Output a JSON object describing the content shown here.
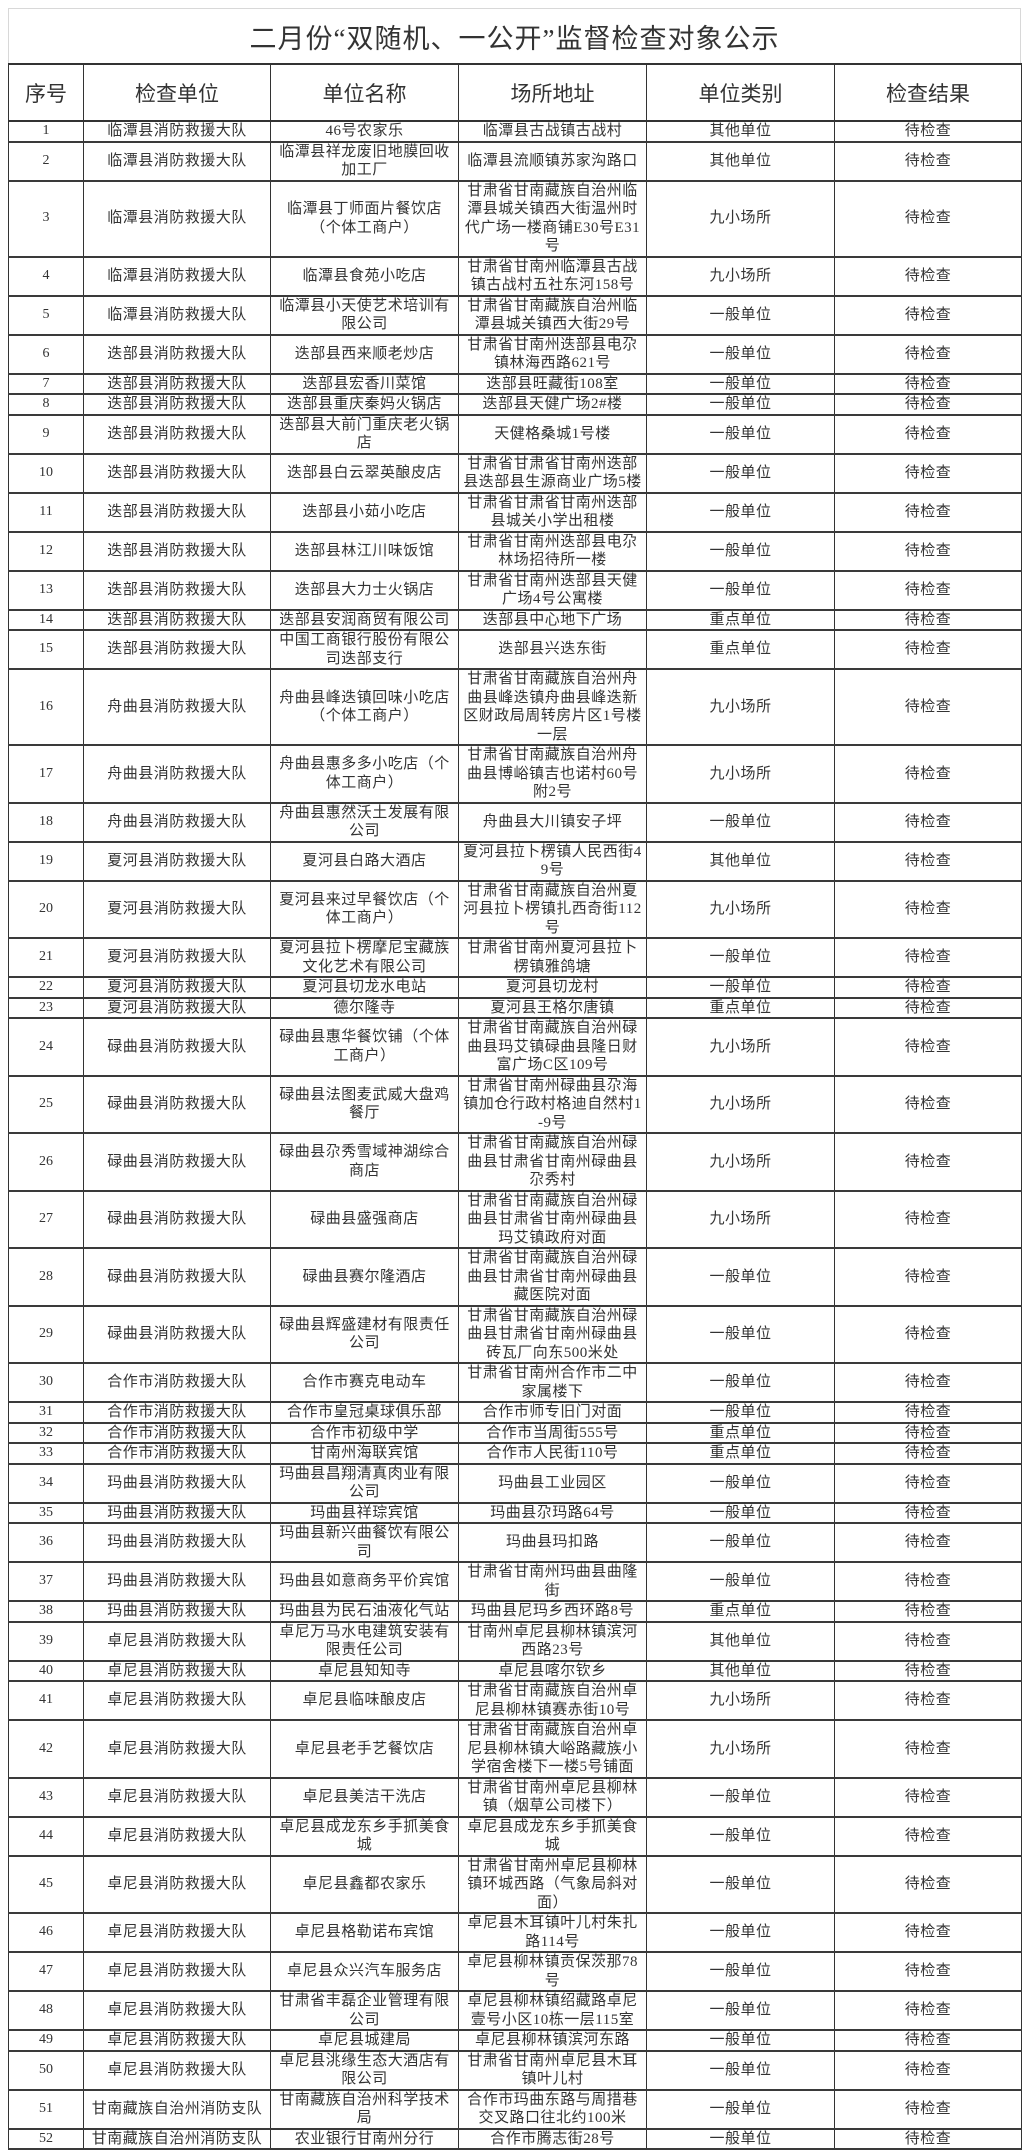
{
  "title": "二月份“双随机、一公开”监督检查对象公示",
  "headers": [
    "序号",
    "检查单位",
    "单位名称",
    "场所地址",
    "单位类别",
    "检查结果"
  ],
  "rows": [
    {
      "no": "1",
      "unit": "临潭县消防救援大队",
      "name": "46号农家乐",
      "address": "临潭县古战镇古战村",
      "category": "其他单位",
      "result": "待检查"
    },
    {
      "no": "2",
      "unit": "临潭县消防救援大队",
      "name": "临潭县祥龙废旧地膜回收加工厂",
      "address": "临潭县流顺镇苏家沟路口",
      "category": "其他单位",
      "result": "待检查"
    },
    {
      "no": "3",
      "unit": "临潭县消防救援大队",
      "name": "临潭县丁师面片餐饮店（个体工商户）",
      "address": "甘肃省甘南藏族自治州临潭县城关镇西大街温州时代广场一楼商铺E30号E31号",
      "category": "九小场所",
      "result": "待检查"
    },
    {
      "no": "4",
      "unit": "临潭县消防救援大队",
      "name": "临潭县食苑小吃店",
      "address": "甘肃省甘南州临潭县古战镇古战村五社东河158号",
      "category": "九小场所",
      "result": "待检查"
    },
    {
      "no": "5",
      "unit": "临潭县消防救援大队",
      "name": "临潭县小天使艺术培训有限公司",
      "address": "甘肃省甘南藏族自治州临潭县城关镇西大街29号",
      "category": "一般单位",
      "result": "待检查"
    },
    {
      "no": "6",
      "unit": "迭部县消防救援大队",
      "name": "迭部县西来顺老炒店",
      "address": "甘肃省甘南州迭部县电尕镇林海西路621号",
      "category": "一般单位",
      "result": "待检查"
    },
    {
      "no": "7",
      "unit": "迭部县消防救援大队",
      "name": "迭部县宏香川菜馆",
      "address": "迭部县旺藏街108室",
      "category": "一般单位",
      "result": "待检查"
    },
    {
      "no": "8",
      "unit": "迭部县消防救援大队",
      "name": "迭部县重庆秦妈火锅店",
      "address": "迭部县天健广场2#楼",
      "category": "一般单位",
      "result": "待检查"
    },
    {
      "no": "9",
      "unit": "迭部县消防救援大队",
      "name": "迭部县大前门重庆老火锅店",
      "address": "天健格桑城1号楼",
      "category": "一般单位",
      "result": "待检查"
    },
    {
      "no": "10",
      "unit": "迭部县消防救援大队",
      "name": "迭部县白云翠英酿皮店",
      "address": "甘肃省甘肃省甘南州迭部县迭部县生源商业广场5楼",
      "category": "一般单位",
      "result": "待检查"
    },
    {
      "no": "11",
      "unit": "迭部县消防救援大队",
      "name": "迭部县小茹小吃店",
      "address": "甘肃省甘肃省甘南州迭部县城关小学出租楼",
      "category": "一般单位",
      "result": "待检查"
    },
    {
      "no": "12",
      "unit": "迭部县消防救援大队",
      "name": "迭部县林江川味饭馆",
      "address": "甘肃省甘南州迭部县电尕林场招待所一楼",
      "category": "一般单位",
      "result": "待检查"
    },
    {
      "no": "13",
      "unit": "迭部县消防救援大队",
      "name": "迭部县大力士火锅店",
      "address": "甘肃省甘南州迭部县天健广场4号公寓楼",
      "category": "一般单位",
      "result": "待检查"
    },
    {
      "no": "14",
      "unit": "迭部县消防救援大队",
      "name": "迭部县安润商贸有限公司",
      "address": "迭部县中心地下广场",
      "category": "重点单位",
      "result": "待检查"
    },
    {
      "no": "15",
      "unit": "迭部县消防救援大队",
      "name": "中国工商银行股份有限公司迭部支行",
      "address": "迭部县兴迭东街",
      "category": "重点单位",
      "result": "待检查"
    },
    {
      "no": "16",
      "unit": "舟曲县消防救援大队",
      "name": "舟曲县峰迭镇回味小吃店（个体工商户）",
      "address": "甘肃省甘南藏族自治州舟曲县峰迭镇舟曲县峰迭新区财政局周转房片区1号楼一层",
      "category": "九小场所",
      "result": "待检查"
    },
    {
      "no": "17",
      "unit": "舟曲县消防救援大队",
      "name": "舟曲县惠多多小吃店（个体工商户）",
      "address": "甘肃省甘南藏族自治州舟曲县博峪镇吉也诺村60号附2号",
      "category": "九小场所",
      "result": "待检查"
    },
    {
      "no": "18",
      "unit": "舟曲县消防救援大队",
      "name": "舟曲县惠然沃土发展有限公司",
      "address": "舟曲县大川镇安子坪",
      "category": "一般单位",
      "result": "待检查"
    },
    {
      "no": "19",
      "unit": "夏河县消防救援大队",
      "name": "夏河县白路大酒店",
      "address": "夏河县拉卜楞镇人民西街49号",
      "category": "其他单位",
      "result": "待检查"
    },
    {
      "no": "20",
      "unit": "夏河县消防救援大队",
      "name": "夏河县来过早餐饮店（个体工商户）",
      "address": "甘肃省甘南藏族自治州夏河县拉卜楞镇扎西奇街112号",
      "category": "九小场所",
      "result": "待检查"
    },
    {
      "no": "21",
      "unit": "夏河县消防救援大队",
      "name": "夏河县拉卜楞摩尼宝藏族文化艺术有限公司",
      "address": "甘肃省甘南州夏河县拉卜楞镇雅鸽塘",
      "category": "一般单位",
      "result": "待检查"
    },
    {
      "no": "22",
      "unit": "夏河县消防救援大队",
      "name": "夏河县切龙水电站",
      "address": "夏河县切龙村",
      "category": "一般单位",
      "result": "待检查"
    },
    {
      "no": "23",
      "unit": "夏河县消防救援大队",
      "name": "德尔隆寺",
      "address": "夏河县王格尔唐镇",
      "category": "重点单位",
      "result": "待检查"
    },
    {
      "no": "24",
      "unit": "碌曲县消防救援大队",
      "name": "碌曲县惠华餐饮铺（个体工商户）",
      "address": "甘肃省甘南藏族自治州碌曲县玛艾镇碌曲县隆日财富广场C区109号",
      "category": "九小场所",
      "result": "待检查"
    },
    {
      "no": "25",
      "unit": "碌曲县消防救援大队",
      "name": "碌曲县法图麦武威大盘鸡餐厅",
      "address": "甘肃省甘南州碌曲县尕海镇加仓行政村格迪自然村1-9号",
      "category": "九小场所",
      "result": "待检查"
    },
    {
      "no": "26",
      "unit": "碌曲县消防救援大队",
      "name": "碌曲县尕秀雪域神湖综合商店",
      "address": "甘肃省甘南藏族自治州碌曲县甘肃省甘南州碌曲县尕秀村",
      "category": "九小场所",
      "result": "待检查"
    },
    {
      "no": "27",
      "unit": "碌曲县消防救援大队",
      "name": "碌曲县盛强商店",
      "address": "甘肃省甘南藏族自治州碌曲县甘肃省甘南州碌曲县玛艾镇政府对面",
      "category": "九小场所",
      "result": "待检查"
    },
    {
      "no": "28",
      "unit": "碌曲县消防救援大队",
      "name": "碌曲县赛尔隆酒店",
      "address": "甘肃省甘南藏族自治州碌曲县甘肃省甘南州碌曲县藏医院对面",
      "category": "一般单位",
      "result": "待检查"
    },
    {
      "no": "29",
      "unit": "碌曲县消防救援大队",
      "name": "碌曲县辉盛建材有限责任公司",
      "address": "甘肃省甘南藏族自治州碌曲县甘肃省甘南州碌曲县砖瓦厂向东500米处",
      "category": "一般单位",
      "result": "待检查"
    },
    {
      "no": "30",
      "unit": "合作市消防救援大队",
      "name": "合作市赛克电动车",
      "address": "甘肃省甘南州合作市二中家属楼下",
      "category": "一般单位",
      "result": "待检查"
    },
    {
      "no": "31",
      "unit": "合作市消防救援大队",
      "name": "合作市皇冠桌球俱乐部",
      "address": "合作市师专旧门对面",
      "category": "一般单位",
      "result": "待检查"
    },
    {
      "no": "32",
      "unit": "合作市消防救援大队",
      "name": "合作市初级中学",
      "address": "合作市当周街555号",
      "category": "重点单位",
      "result": "待检查"
    },
    {
      "no": "33",
      "unit": "合作市消防救援大队",
      "name": "甘南州海联宾馆",
      "address": "合作市人民街110号",
      "category": "重点单位",
      "result": "待检查"
    },
    {
      "no": "34",
      "unit": "玛曲县消防救援大队",
      "name": "玛曲县昌翔清真肉业有限公司",
      "address": "玛曲县工业园区",
      "category": "一般单位",
      "result": "待检查"
    },
    {
      "no": "35",
      "unit": "玛曲县消防救援大队",
      "name": "玛曲县祥琮宾馆",
      "address": "玛曲县尕玛路64号",
      "category": "一般单位",
      "result": "待检查"
    },
    {
      "no": "36",
      "unit": "玛曲县消防救援大队",
      "name": "玛曲县新兴曲餐饮有限公司",
      "address": "玛曲县玛扣路",
      "category": "一般单位",
      "result": "待检查"
    },
    {
      "no": "37",
      "unit": "玛曲县消防救援大队",
      "name": "玛曲县如意商务平价宾馆",
      "address": "甘肃省甘南州玛曲县曲隆街",
      "category": "一般单位",
      "result": "待检查"
    },
    {
      "no": "38",
      "unit": "玛曲县消防救援大队",
      "name": "玛曲县为民石油液化气站",
      "address": "玛曲县尼玛乡西环路8号",
      "category": "重点单位",
      "result": "待检查"
    },
    {
      "no": "39",
      "unit": "卓尼县消防救援大队",
      "name": "卓尼万马水电建筑安装有限责任公司",
      "address": "甘南州卓尼县柳林镇滨河西路23号",
      "category": "其他单位",
      "result": "待检查"
    },
    {
      "no": "40",
      "unit": "卓尼县消防救援大队",
      "name": "卓尼县知知寺",
      "address": "卓尼县喀尔钦乡",
      "category": "其他单位",
      "result": "待检查"
    },
    {
      "no": "41",
      "unit": "卓尼县消防救援大队",
      "name": "卓尼县临味酿皮店",
      "address": "甘肃省甘南藏族自治州卓尼县柳林镇赛赤街10号",
      "category": "九小场所",
      "result": "待检查"
    },
    {
      "no": "42",
      "unit": "卓尼县消防救援大队",
      "name": "卓尼县老手艺餐饮店",
      "address": "甘肃省甘南藏族自治州卓尼县柳林镇大峪路藏族小学宿舍楼下一楼5号铺面",
      "category": "九小场所",
      "result": "待检查"
    },
    {
      "no": "43",
      "unit": "卓尼县消防救援大队",
      "name": "卓尼县美洁干洗店",
      "address": "甘肃省甘南州卓尼县柳林镇（烟草公司楼下）",
      "category": "一般单位",
      "result": "待检查"
    },
    {
      "no": "44",
      "unit": "卓尼县消防救援大队",
      "name": "卓尼县成龙东乡手抓美食城",
      "address": "卓尼县成龙东乡手抓美食城",
      "category": "一般单位",
      "result": "待检查"
    },
    {
      "no": "45",
      "unit": "卓尼县消防救援大队",
      "name": "卓尼县鑫都农家乐",
      "address": "甘肃省甘南州卓尼县柳林镇环城西路（气象局斜对面）",
      "category": "一般单位",
      "result": "待检查"
    },
    {
      "no": "46",
      "unit": "卓尼县消防救援大队",
      "name": "卓尼县格勒诺布宾馆",
      "address": "卓尼县木耳镇叶儿村朱扎路114号",
      "category": "一般单位",
      "result": "待检查"
    },
    {
      "no": "47",
      "unit": "卓尼县消防救援大队",
      "name": "卓尼县众兴汽车服务店",
      "address": "卓尼县柳林镇贡保茨那78号",
      "category": "一般单位",
      "result": "待检查"
    },
    {
      "no": "48",
      "unit": "卓尼县消防救援大队",
      "name": "甘肃省丰磊企业管理有限公司",
      "address": "卓尼县柳林镇绍藏路卓尼壹号小区10栋一层115室",
      "category": "一般单位",
      "result": "待检查"
    },
    {
      "no": "49",
      "unit": "卓尼县消防救援大队",
      "name": "卓尼县城建局",
      "address": "卓尼县柳林镇滨河东路",
      "category": "一般单位",
      "result": "待检查"
    },
    {
      "no": "50",
      "unit": "卓尼县消防救援大队",
      "name": "卓尼县洮缘生态大酒店有限公司",
      "address": "甘肃省甘南州卓尼县木耳镇叶儿村",
      "category": "一般单位",
      "result": "待检查"
    },
    {
      "no": "51",
      "unit": "甘南藏族自治州消防支队",
      "name": "甘南藏族自治州科学技术局",
      "address": "合作市玛曲东路与周措巷交叉路口往北约100米",
      "category": "一般单位",
      "result": "待检查"
    },
    {
      "no": "52",
      "unit": "甘南藏族自治州消防支队",
      "name": "农业银行甘南州分行",
      "address": "合作市腾志街28号",
      "category": "一般单位",
      "result": "待检查"
    }
  ]
}
